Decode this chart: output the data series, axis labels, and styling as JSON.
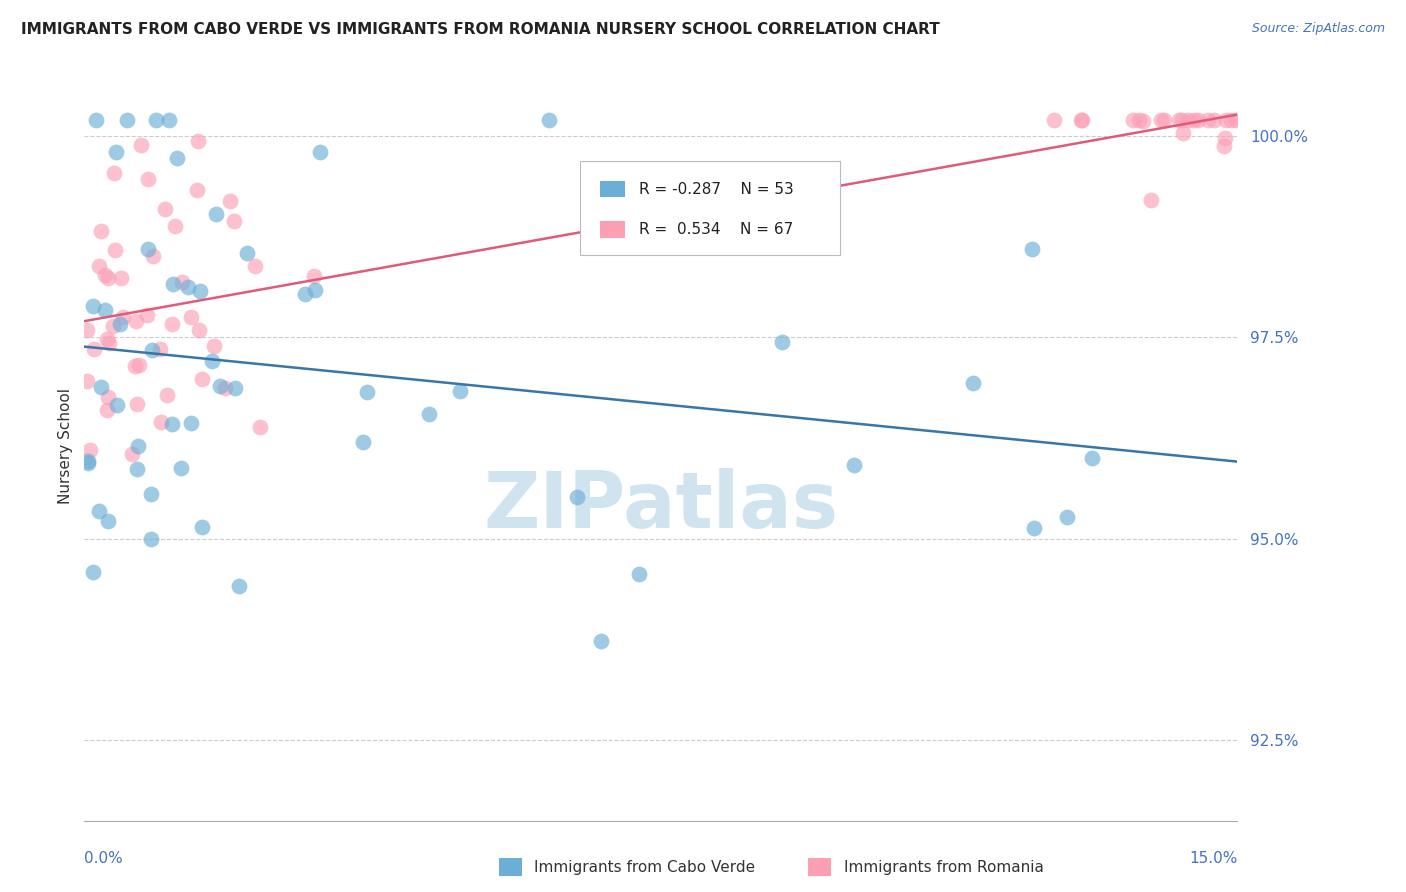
{
  "title": "IMMIGRANTS FROM CABO VERDE VS IMMIGRANTS FROM ROMANIA NURSERY SCHOOL CORRELATION CHART",
  "source": "Source: ZipAtlas.com",
  "ylabel": "Nursery School",
  "xmin": 0.0,
  "xmax": 15.0,
  "ymin": 91.5,
  "ymax": 100.8,
  "yticks": [
    92.5,
    95.0,
    97.5,
    100.0
  ],
  "ytick_labels": [
    "92.5%",
    "95.0%",
    "97.5%",
    "100.0%"
  ],
  "cabo_verde_r": -0.287,
  "cabo_verde_n": 53,
  "romania_r": 0.534,
  "romania_n": 67,
  "cabo_verde_color": "#6baed6",
  "romania_color": "#fc9fb5",
  "cabo_verde_line_color": "#3875a8",
  "romania_line_color": "#e05a7a",
  "watermark_color": "#d0e4f0"
}
